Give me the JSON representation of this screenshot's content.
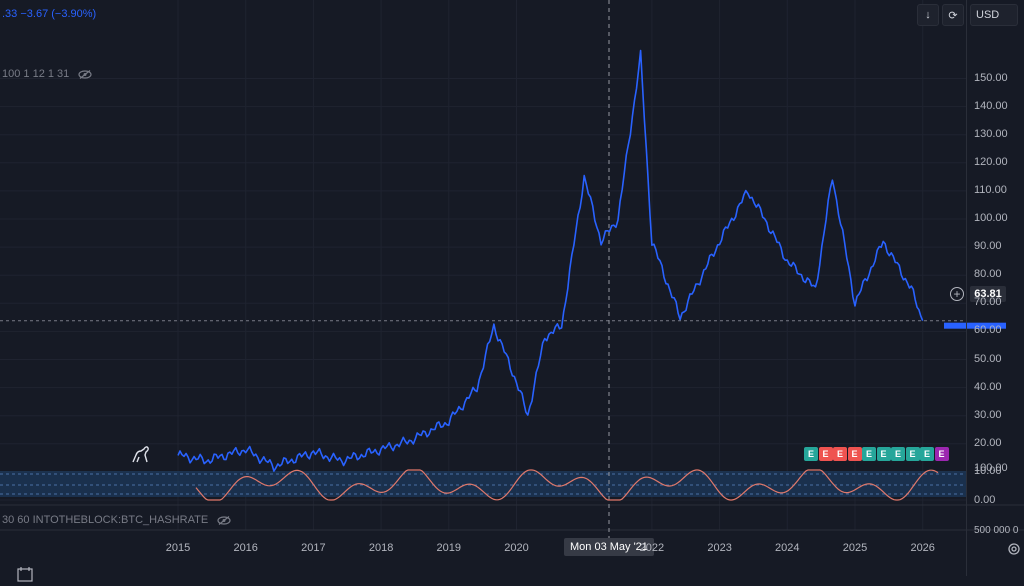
{
  "header": {
    "change_text": ".33  −3.67 (−3.90%)",
    "indicator_params": "100 1 12 1 31",
    "hashrate_label": "30 60 INTOTHEBLOCK:BTC_HASHRATE"
  },
  "toolbar": {
    "download_icon": "↓",
    "refresh_icon": "⟳",
    "currency_label": "USD"
  },
  "crosshair_date": "Mon 03 May '21",
  "last_price_label": "63.81",
  "bottom_right_partial": "500 000 0",
  "colors": {
    "background": "#161a25",
    "price_line": "#2962ff",
    "oscillator_line": "#e0786a",
    "oscillator_band": "#1c3a5e"
  },
  "chart_data": {
    "type": "line",
    "x": [
      "2015-01",
      "2015-06",
      "2016-01",
      "2016-06",
      "2017-01",
      "2017-06",
      "2018-01",
      "2018-06",
      "2019-01",
      "2019-06",
      "2019-09",
      "2020-01",
      "2020-03",
      "2020-06",
      "2020-09",
      "2021-01",
      "2021-04",
      "2021-07",
      "2021-11",
      "2022-01",
      "2022-06",
      "2023-01",
      "2023-06",
      "2023-09",
      "2024-01",
      "2024-06",
      "2024-09",
      "2025-01",
      "2025-06",
      "2025-11",
      "2026-01"
    ],
    "series": [
      {
        "values": [
          16,
          14,
          18,
          12,
          17,
          14,
          18,
          21,
          28,
          40,
          62,
          42,
          30,
          58,
          62,
          115,
          92,
          100,
          158,
          92,
          65,
          92,
          110,
          100,
          85,
          75,
          115,
          70,
          92,
          75,
          63.81
        ]
      }
    ],
    "ylabel": "",
    "yticks": [
      "0.00",
      "10.00",
      "20.00",
      "30.00",
      "40.00",
      "50.00",
      "60.00",
      "70.00",
      "80.00",
      "90.00",
      "100.00",
      "110.00",
      "120.00",
      "130.00",
      "140.00",
      "150.00"
    ],
    "ylim": [
      0,
      160
    ],
    "xticks": [
      "2015",
      "2016",
      "2017",
      "2018",
      "2019",
      "2020",
      "2022",
      "2023",
      "2024",
      "2025",
      "2026"
    ],
    "oscillator": {
      "yticks": [
        "100.00",
        "0.00"
      ],
      "ylim": [
        0,
        100
      ]
    },
    "earnings_markers": [
      "E",
      "E",
      "E",
      "E",
      "E",
      "E",
      "E",
      "E",
      "E",
      "E"
    ],
    "grid": true
  }
}
